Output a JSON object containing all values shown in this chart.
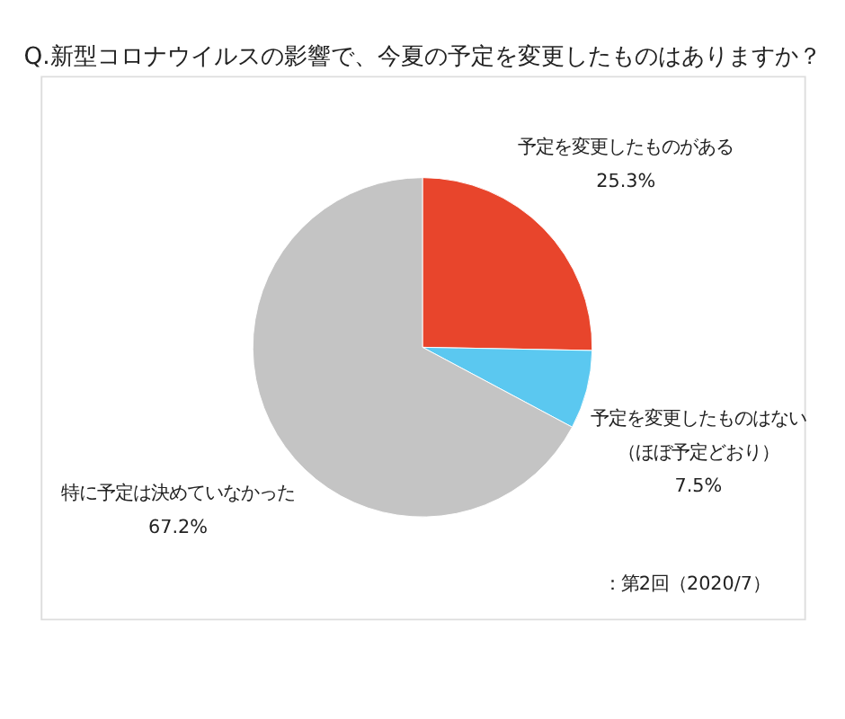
{
  "chart_data": {
    "type": "pie",
    "title": "Q.新型コロナウイルスの影響で、今夏の予定を変更したものはありますか？",
    "categories": [
      "予定を変更したものがある",
      "予定を変更したものはない（ほぼ予定どおり）",
      "特に予定は決めていなかった"
    ],
    "values": [
      25.3,
      7.5,
      67.2
    ],
    "value_labels": [
      "25.3%",
      "7.5%",
      "67.2%"
    ],
    "colors": [
      "#e8452c",
      "#5bc8f0",
      "#c4c4c4"
    ],
    "legend": false,
    "annotations": [
      "：第2回（2020/7）"
    ]
  }
}
